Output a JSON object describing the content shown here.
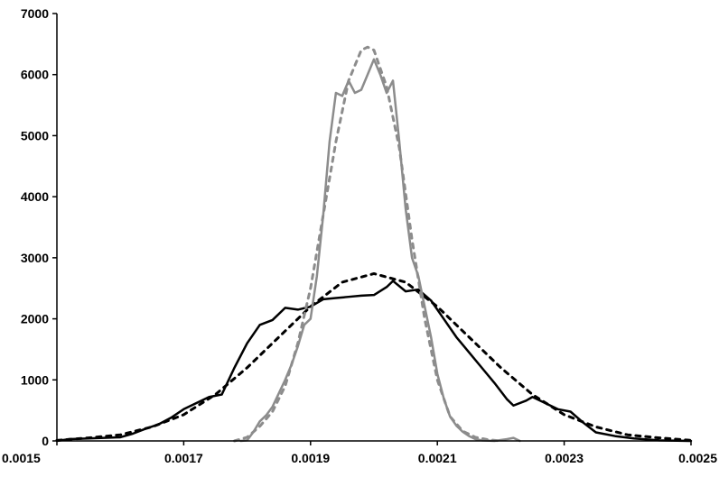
{
  "chart_data": {
    "type": "line",
    "title": "",
    "xlabel": "",
    "ylabel": "",
    "xlim": [
      0.0015,
      0.0025
    ],
    "ylim": [
      0,
      7000
    ],
    "grid": false,
    "legend": "none",
    "x_ticks": [
      {
        "value": 0.0015,
        "label": "0.0015"
      },
      {
        "value": 0.0017,
        "label": "0.0017"
      },
      {
        "value": 0.0019,
        "label": "0.0019"
      },
      {
        "value": 0.0021,
        "label": "0.0021"
      },
      {
        "value": 0.0023,
        "label": "0.0023"
      },
      {
        "value": 0.0025,
        "label": "0.0025"
      }
    ],
    "y_ticks": [
      {
        "value": 0,
        "label": "0"
      },
      {
        "value": 1000,
        "label": "1000"
      },
      {
        "value": 2000,
        "label": "2000"
      },
      {
        "value": 3000,
        "label": "3000"
      },
      {
        "value": 4000,
        "label": "4000"
      },
      {
        "value": 5000,
        "label": "5000"
      },
      {
        "value": 6000,
        "label": "6000"
      },
      {
        "value": 7000,
        "label": "7000"
      }
    ],
    "series": [
      {
        "style": "solid",
        "color": "#000000",
        "points": [
          [
            0.0015,
            0
          ],
          [
            0.00152,
            30
          ],
          [
            0.00155,
            40
          ],
          [
            0.0016,
            60
          ],
          [
            0.00162,
            120
          ],
          [
            0.00164,
            200
          ],
          [
            0.00166,
            270
          ],
          [
            0.00168,
            380
          ],
          [
            0.0017,
            520
          ],
          [
            0.00172,
            620
          ],
          [
            0.00174,
            720
          ],
          [
            0.00176,
            760
          ],
          [
            0.00178,
            1200
          ],
          [
            0.0018,
            1600
          ],
          [
            0.00182,
            1900
          ],
          [
            0.00184,
            1980
          ],
          [
            0.00186,
            2180
          ],
          [
            0.00188,
            2150
          ],
          [
            0.0019,
            2200
          ],
          [
            0.00192,
            2320
          ],
          [
            0.00194,
            2340
          ],
          [
            0.00196,
            2360
          ],
          [
            0.00198,
            2380
          ],
          [
            0.002,
            2390
          ],
          [
            0.00202,
            2520
          ],
          [
            0.00203,
            2620
          ],
          [
            0.00205,
            2450
          ],
          [
            0.00207,
            2480
          ],
          [
            0.00209,
            2300
          ],
          [
            0.00211,
            2000
          ],
          [
            0.00213,
            1700
          ],
          [
            0.00215,
            1450
          ],
          [
            0.00217,
            1200
          ],
          [
            0.00219,
            950
          ],
          [
            0.00221,
            680
          ],
          [
            0.00222,
            580
          ],
          [
            0.00224,
            660
          ],
          [
            0.00225,
            720
          ],
          [
            0.00227,
            620
          ],
          [
            0.00229,
            520
          ],
          [
            0.00231,
            480
          ],
          [
            0.00233,
            300
          ],
          [
            0.00235,
            140
          ],
          [
            0.00238,
            80
          ],
          [
            0.00241,
            40
          ],
          [
            0.00245,
            10
          ],
          [
            0.0025,
            0
          ]
        ]
      },
      {
        "style": "dashed",
        "color": "#000000",
        "points": [
          [
            0.0015,
            10
          ],
          [
            0.00155,
            50
          ],
          [
            0.0016,
            100
          ],
          [
            0.00165,
            230
          ],
          [
            0.0017,
            430
          ],
          [
            0.00175,
            760
          ],
          [
            0.0018,
            1200
          ],
          [
            0.00185,
            1700
          ],
          [
            0.0019,
            2200
          ],
          [
            0.00195,
            2600
          ],
          [
            0.002,
            2740
          ],
          [
            0.00205,
            2600
          ],
          [
            0.0021,
            2200
          ],
          [
            0.00215,
            1700
          ],
          [
            0.0022,
            1200
          ],
          [
            0.00225,
            760
          ],
          [
            0.0023,
            430
          ],
          [
            0.00235,
            230
          ],
          [
            0.0024,
            100
          ],
          [
            0.00245,
            50
          ],
          [
            0.0025,
            10
          ]
        ]
      },
      {
        "style": "solid",
        "color": "#8c8c8c",
        "points": [
          [
            0.00179,
            0
          ],
          [
            0.0018,
            10
          ],
          [
            0.00181,
            150
          ],
          [
            0.00182,
            320
          ],
          [
            0.00183,
            420
          ],
          [
            0.00184,
            560
          ],
          [
            0.00185,
            780
          ],
          [
            0.00186,
            1000
          ],
          [
            0.00187,
            1250
          ],
          [
            0.00188,
            1550
          ],
          [
            0.00189,
            1900
          ],
          [
            0.0019,
            2000
          ],
          [
            0.00191,
            2700
          ],
          [
            0.00192,
            3700
          ],
          [
            0.00193,
            4900
          ],
          [
            0.00194,
            5700
          ],
          [
            0.00195,
            5650
          ],
          [
            0.00196,
            5900
          ],
          [
            0.00197,
            5700
          ],
          [
            0.00198,
            5750
          ],
          [
            0.00199,
            6000
          ],
          [
            0.002,
            6250
          ],
          [
            0.00201,
            6000
          ],
          [
            0.00202,
            5700
          ],
          [
            0.00203,
            5900
          ],
          [
            0.00204,
            4900
          ],
          [
            0.00205,
            3800
          ],
          [
            0.00206,
            3000
          ],
          [
            0.00207,
            2700
          ],
          [
            0.00208,
            2200
          ],
          [
            0.00209,
            1700
          ],
          [
            0.0021,
            1100
          ],
          [
            0.00211,
            700
          ],
          [
            0.00212,
            400
          ],
          [
            0.00213,
            250
          ],
          [
            0.00214,
            150
          ],
          [
            0.00215,
            80
          ],
          [
            0.00216,
            30
          ],
          [
            0.00217,
            10
          ],
          [
            0.00219,
            0
          ],
          [
            0.00221,
            30
          ],
          [
            0.00222,
            50
          ],
          [
            0.00223,
            0
          ]
        ]
      },
      {
        "style": "dashed",
        "color": "#8c8c8c",
        "points": [
          [
            0.00178,
            0
          ],
          [
            0.0018,
            60
          ],
          [
            0.00182,
            240
          ],
          [
            0.00184,
            480
          ],
          [
            0.00186,
            900
          ],
          [
            0.00188,
            1600
          ],
          [
            0.0019,
            2500
          ],
          [
            0.00192,
            3700
          ],
          [
            0.00194,
            4900
          ],
          [
            0.00196,
            5900
          ],
          [
            0.00198,
            6400
          ],
          [
            0.00199,
            6450
          ],
          [
            0.002,
            6400
          ],
          [
            0.00202,
            5800
          ],
          [
            0.00204,
            4800
          ],
          [
            0.00206,
            3300
          ],
          [
            0.00208,
            2000
          ],
          [
            0.0021,
            1000
          ],
          [
            0.00212,
            400
          ],
          [
            0.00214,
            160
          ],
          [
            0.00216,
            60
          ],
          [
            0.00218,
            20
          ],
          [
            0.0022,
            0
          ]
        ]
      }
    ]
  }
}
